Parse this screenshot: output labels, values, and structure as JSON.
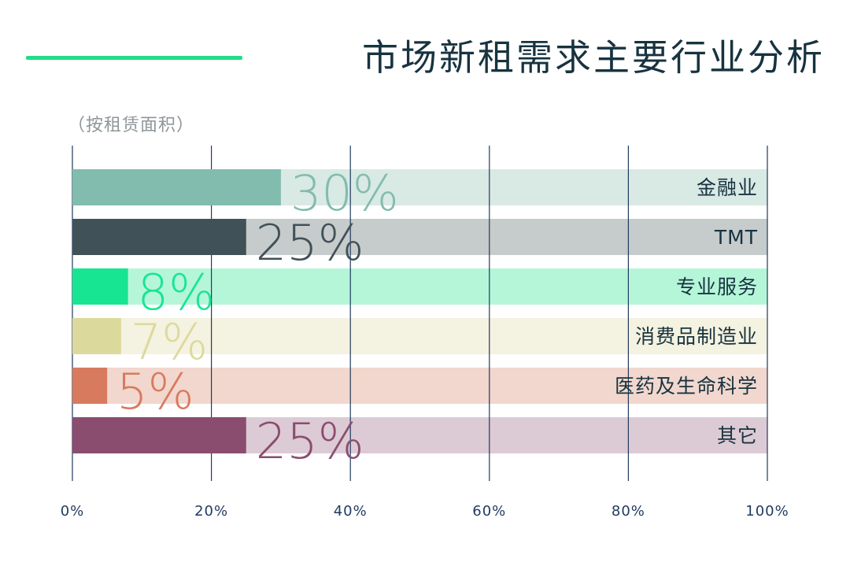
{
  "title": "市场新租需求主要行业分析",
  "subtitle": "（按租赁面积）",
  "colors": {
    "accent_line": "#22dd88",
    "title": "#17333f",
    "subtitle": "#8f9699",
    "gridline": "#1f3a5f",
    "tick_label": "#1f3a5f",
    "category_label": "#17333f"
  },
  "chart_data": {
    "type": "bar",
    "orientation": "horizontal",
    "categories": [
      "金融业",
      "TMT",
      "专业服务",
      "消费品制造业",
      "医药及生命科学",
      "其它"
    ],
    "values": [
      30,
      25,
      8,
      7,
      5,
      25
    ],
    "data_labels": [
      "30%",
      "25%",
      "8%",
      "7%",
      "5%",
      "25%"
    ],
    "bar_colors": [
      "#82bcae",
      "#415158",
      "#18e592",
      "#dcd99c",
      "#d87a5e",
      "#8a4d6f"
    ],
    "track_colors": [
      "#d9e9e4",
      "#c6cbcb",
      "#b5f6d9",
      "#f4f2e0",
      "#f2d7ce",
      "#dccad5"
    ],
    "xlim": [
      0,
      100
    ],
    "xticks": [
      0,
      20,
      40,
      60,
      80,
      100
    ],
    "xtick_labels": [
      "0%",
      "20%",
      "40%",
      "60%",
      "80%",
      "100%"
    ],
    "grid": true,
    "legend": "none"
  }
}
